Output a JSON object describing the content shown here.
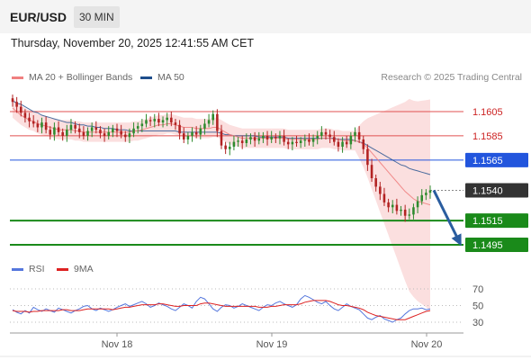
{
  "header": {
    "pair": "EUR/USD",
    "timeframe": "30 MIN"
  },
  "timestamp": "Thursday, November 20, 2025 12:41:55 AM CET",
  "legend": {
    "ma20": "MA 20 + Bollinger Bands",
    "ma50": "MA 50",
    "copyright": "Research © 2025 Trading Central"
  },
  "rsi_legend": {
    "rsi": "RSI",
    "ma": "9MA"
  },
  "colors": {
    "ma20": "#f08080",
    "ma50": "#1f4e8c",
    "up": "#2e8b2e",
    "down": "#b22222",
    "support": "#1a8a1a",
    "pivot": "#2255dd",
    "resistance": "#e05050",
    "rsi": "#5577dd",
    "rsi_ma": "#dd2222",
    "arrow": "#2a5d9f",
    "current": "#333333"
  },
  "chart_data": [
    {
      "type": "candlestick",
      "title": "EUR/USD 30 MIN",
      "x_ticks": [
        "Nov 18",
        "Nov 19",
        "Nov 20"
      ],
      "levels": [
        {
          "value": 1.1605,
          "label": "1.1605",
          "kind": "resistance"
        },
        {
          "value": 1.1585,
          "label": "1.1585",
          "kind": "resistance"
        },
        {
          "value": 1.1565,
          "label": "1.1565",
          "kind": "pivot"
        },
        {
          "value": 1.154,
          "label": "1.1540",
          "kind": "current"
        },
        {
          "value": 1.1515,
          "label": "1.1515",
          "kind": "support"
        },
        {
          "value": 1.1495,
          "label": "1.1495",
          "kind": "support"
        }
      ],
      "close": [
        1.1613,
        1.1609,
        1.1604,
        1.16,
        1.1597,
        1.1595,
        1.1592,
        1.1596,
        1.159,
        1.1586,
        1.1592,
        1.1588,
        1.1585,
        1.159,
        1.1594,
        1.1591,
        1.1588,
        1.1585,
        1.1589,
        1.1592,
        1.159,
        1.1587,
        1.1585,
        1.1588,
        1.1591,
        1.1589,
        1.1586,
        1.1584,
        1.1587,
        1.1591,
        1.1593,
        1.1595,
        1.1598,
        1.1597,
        1.1599,
        1.1596,
        1.1598,
        1.16,
        1.1596,
        1.1594,
        1.1587,
        1.1582,
        1.1585,
        1.1588,
        1.1586,
        1.1591,
        1.1595,
        1.1598,
        1.1603,
        1.1589,
        1.1577,
        1.1574,
        1.1576,
        1.158,
        1.1581,
        1.1579,
        1.1582,
        1.1584,
        1.1581,
        1.1583,
        1.1585,
        1.1582,
        1.1584,
        1.1583,
        1.1585,
        1.158,
        1.1578,
        1.158,
        1.1579,
        1.1581,
        1.1582,
        1.158,
        1.1583,
        1.1585,
        1.1588,
        1.1586,
        1.1584,
        1.158,
        1.1576,
        1.158,
        1.1578,
        1.1585,
        1.1588,
        1.1582,
        1.1574,
        1.1561,
        1.155,
        1.1543,
        1.1537,
        1.153,
        1.1526,
        1.1528,
        1.1523,
        1.1524,
        1.1519,
        1.152,
        1.1526,
        1.1531,
        1.1536,
        1.1538,
        1.154
      ],
      "ma20_basis": [
        1.1608,
        1.1605,
        1.1602,
        1.16,
        1.1598,
        1.1597,
        1.1595,
        1.1594,
        1.1593,
        1.1592,
        1.1591,
        1.159,
        1.159,
        1.159,
        1.159,
        1.1589,
        1.1589,
        1.1588,
        1.1588,
        1.1588,
        1.1588,
        1.1588,
        1.1588,
        1.1588,
        1.1588,
        1.1588,
        1.1588,
        1.1588,
        1.1588,
        1.1589,
        1.1589,
        1.159,
        1.1591,
        1.1592,
        1.1593,
        1.1594,
        1.1594,
        1.1595,
        1.1595,
        1.1594,
        1.1593,
        1.1592,
        1.1592,
        1.1592,
        1.1591,
        1.1591,
        1.1591,
        1.1591,
        1.1592,
        1.1592,
        1.159,
        1.1588,
        1.1586,
        1.1585,
        1.1584,
        1.1583,
        1.1583,
        1.1583,
        1.1583,
        1.1583,
        1.1583,
        1.1583,
        1.1583,
        1.1583,
        1.1583,
        1.1583,
        1.1582,
        1.1582,
        1.1582,
        1.1582,
        1.1582,
        1.1582,
        1.1582,
        1.1582,
        1.1583,
        1.1583,
        1.1583,
        1.1582,
        1.1582,
        1.1581,
        1.1581,
        1.1581,
        1.1581,
        1.158,
        1.1578,
        1.1575,
        1.1571,
        1.1567,
        1.1563,
        1.1559,
        1.1555,
        1.1551,
        1.1547,
        1.1543,
        1.1539,
        1.1536,
        1.1533,
        1.1531,
        1.153,
        1.1529,
        1.1528
      ],
      "ma50": [
        1.1614,
        1.1612,
        1.1611,
        1.1609,
        1.1607,
        1.1605,
        1.1604,
        1.1602,
        1.1601,
        1.16,
        1.1599,
        1.1598,
        1.1597,
        1.1596,
        1.1596,
        1.1595,
        1.1594,
        1.1594,
        1.1593,
        1.1593,
        1.1592,
        1.1592,
        1.1591,
        1.1591,
        1.1591,
        1.159,
        1.159,
        1.159,
        1.1589,
        1.1589,
        1.1589,
        1.1589,
        1.1589,
        1.1589,
        1.1589,
        1.1589,
        1.1589,
        1.1589,
        1.1589,
        1.1589,
        1.1588,
        1.1588,
        1.1588,
        1.1588,
        1.1588,
        1.1588,
        1.1588,
        1.1588,
        1.1588,
        1.1588,
        1.1587,
        1.1586,
        1.1586,
        1.1585,
        1.1585,
        1.1585,
        1.1585,
        1.1585,
        1.1585,
        1.1584,
        1.1584,
        1.1584,
        1.1584,
        1.1584,
        1.1584,
        1.1584,
        1.1583,
        1.1583,
        1.1583,
        1.1583,
        1.1583,
        1.1583,
        1.1583,
        1.1583,
        1.1583,
        1.1583,
        1.1583,
        1.1583,
        1.1582,
        1.1582,
        1.1582,
        1.1582,
        1.1581,
        1.158,
        1.1579,
        1.1577,
        1.1575,
        1.1573,
        1.1571,
        1.1569,
        1.1567,
        1.1565,
        1.1563,
        1.1561,
        1.156,
        1.1558,
        1.1557,
        1.1556,
        1.1555,
        1.1554,
        1.1553
      ],
      "forecast": {
        "from": 1.154,
        "to": 1.1495
      }
    },
    {
      "type": "line",
      "title": "RSI",
      "y_ticks": [
        70,
        50,
        30
      ],
      "ylim": [
        20,
        80
      ],
      "series": [
        {
          "name": "RSI",
          "values": [
            45,
            42,
            40,
            44,
            41,
            48,
            45,
            43,
            46,
            44,
            42,
            47,
            45,
            43,
            41,
            44,
            46,
            49,
            50,
            46,
            44,
            47,
            45,
            43,
            45,
            48,
            50,
            52,
            49,
            51,
            53,
            55,
            52,
            48,
            50,
            53,
            51,
            49,
            46,
            44,
            48,
            52,
            50,
            47,
            55,
            60,
            58,
            52,
            46,
            43,
            48,
            51,
            50,
            47,
            49,
            52,
            50,
            48,
            46,
            44,
            48,
            51,
            50,
            53,
            55,
            52,
            50,
            48,
            51,
            58,
            62,
            60,
            57,
            54,
            52,
            55,
            50,
            46,
            44,
            48,
            52,
            49,
            47,
            45,
            40,
            35,
            33,
            36,
            38,
            34,
            32,
            30,
            33,
            35,
            40,
            44,
            46,
            46,
            47,
            45,
            46
          ]
        },
        {
          "name": "9MA",
          "values": [
            44,
            43,
            43,
            43,
            42,
            43,
            43,
            44,
            44,
            44,
            44,
            44,
            45,
            45,
            44,
            44,
            44,
            45,
            46,
            46,
            46,
            46,
            46,
            46,
            45,
            46,
            47,
            48,
            48,
            49,
            50,
            51,
            51,
            51,
            51,
            52,
            52,
            51,
            50,
            49,
            49,
            50,
            50,
            50,
            50,
            52,
            53,
            53,
            52,
            51,
            50,
            49,
            49,
            49,
            49,
            49,
            49,
            49,
            49,
            48,
            48,
            48,
            49,
            49,
            50,
            51,
            51,
            51,
            51,
            52,
            54,
            55,
            56,
            56,
            56,
            56,
            55,
            53,
            51,
            50,
            50,
            49,
            48,
            47,
            45,
            42,
            40,
            38,
            37,
            36,
            35,
            34,
            33,
            33,
            33,
            35,
            37,
            39,
            41,
            43,
            44
          ]
        }
      ]
    }
  ]
}
